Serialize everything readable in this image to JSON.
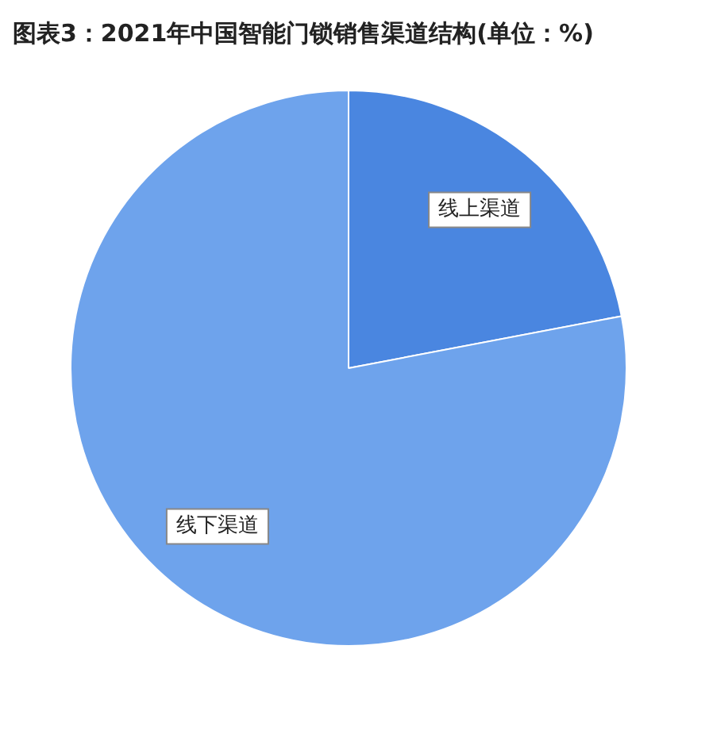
{
  "chart_data": {
    "type": "pie",
    "title": "图表3：2021年中国智能门锁销售渠道结构(单位：%)",
    "categories": [
      "线上渠道",
      "线下渠道"
    ],
    "values": [
      22,
      78
    ],
    "colors": [
      "#4a86e0",
      "#6ea3ec"
    ],
    "legend": false
  }
}
